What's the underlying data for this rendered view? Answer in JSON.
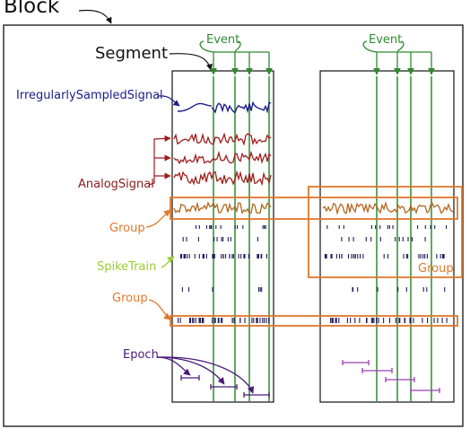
{
  "labels": {
    "block": "Block",
    "segment": "Segment",
    "event_left": "Event",
    "event_right": "Event",
    "irregular": "IrregularlySampledSignal",
    "analog": "AnalogSignal",
    "group_top": "Group",
    "spiketrain": "SpikeTrain",
    "group_bottom": "Group",
    "group_right": "Group",
    "epoch": "Epoch"
  },
  "colors": {
    "event": "#2e8b2e",
    "irregular": "#1c1c8a",
    "analog": "#a01c1c",
    "group": "#e0782a",
    "group_signal": "#b5651d",
    "spiketrain": "#9acd32",
    "spikes": "#1c1c5a",
    "epoch_left": "#4b1a7a",
    "epoch_right": "#9b3fb0",
    "frame": "#111111"
  }
}
